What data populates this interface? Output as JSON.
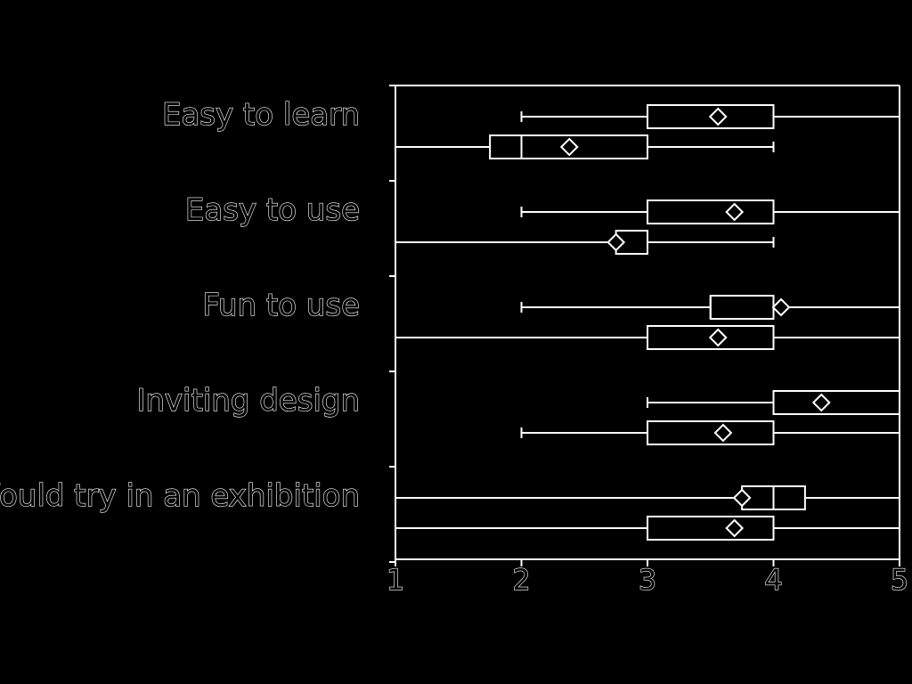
{
  "chart_data": {
    "type": "boxplot",
    "orientation": "horizontal",
    "categories": [
      "Easy to learn",
      "Easy to use",
      "Fun to use",
      "Inviting design",
      "Would try in an exhibition"
    ],
    "xlim": [
      1,
      5
    ],
    "x_ticks": [
      "1",
      "2",
      "3",
      "4",
      "5"
    ],
    "grid": false,
    "colors": {
      "background": "#000000",
      "foreground": "#ffffff"
    },
    "boxes": [
      {
        "category": "Easy to learn",
        "slot": 0,
        "whisker_low": 2,
        "q1": 3,
        "median": 4,
        "q3": 4,
        "whisker_high": 5,
        "mean": 3.56
      },
      {
        "category": "Easy to learn",
        "slot": 1,
        "whisker_low": 1,
        "q1": 1.75,
        "median": 2,
        "q3": 3,
        "whisker_high": 4,
        "mean": 2.38
      },
      {
        "category": "Easy to use",
        "slot": 0,
        "whisker_low": 2,
        "q1": 3,
        "median": 3,
        "q3": 4,
        "whisker_high": 5,
        "mean": 3.69
      },
      {
        "category": "Easy to use",
        "slot": 1,
        "whisker_low": 1,
        "q1": 2.75,
        "median": 3,
        "q3": 3,
        "whisker_high": 4,
        "mean": 2.75
      },
      {
        "category": "Fun to use",
        "slot": 0,
        "whisker_low": 2,
        "q1": 3.5,
        "median": 3.5,
        "q3": 4,
        "whisker_high": 5,
        "mean": 4.06
      },
      {
        "category": "Fun to use",
        "slot": 1,
        "whisker_low": 1,
        "q1": 3,
        "median": 3,
        "q3": 4,
        "whisker_high": 5,
        "mean": 3.56
      },
      {
        "category": "Inviting design",
        "slot": 0,
        "whisker_low": 3,
        "q1": 4,
        "median": 4,
        "q3": 5,
        "whisker_high": 5,
        "mean": 4.38
      },
      {
        "category": "Inviting design",
        "slot": 1,
        "whisker_low": 2,
        "q1": 3,
        "median": 3,
        "q3": 4,
        "whisker_high": 5,
        "mean": 3.6
      },
      {
        "category": "Would try in an exhibition",
        "slot": 0,
        "whisker_low": 1,
        "q1": 3.75,
        "median": 4,
        "q3": 4.25,
        "whisker_high": 5,
        "mean": 3.75
      },
      {
        "category": "Would try in an exhibition",
        "slot": 1,
        "whisker_low": 1,
        "q1": 3,
        "median": 3,
        "q3": 4,
        "whisker_high": 5,
        "mean": 3.69
      }
    ]
  }
}
